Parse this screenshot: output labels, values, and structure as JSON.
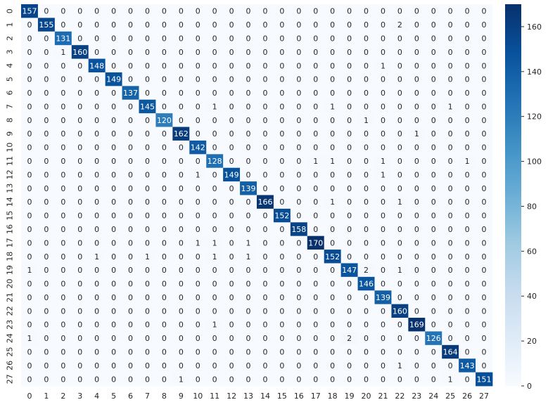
{
  "chart_data": {
    "type": "heatmap",
    "x_ticks": [
      "0",
      "1",
      "2",
      "3",
      "4",
      "5",
      "6",
      "7",
      "8",
      "9",
      "10",
      "11",
      "12",
      "13",
      "14",
      "15",
      "16",
      "17",
      "18",
      "19",
      "20",
      "21",
      "22",
      "23",
      "24",
      "25",
      "26",
      "27"
    ],
    "y_ticks": [
      "0",
      "1",
      "2",
      "3",
      "4",
      "5",
      "6",
      "7",
      "8",
      "9",
      "10",
      "11",
      "12",
      "13",
      "14",
      "15",
      "16",
      "17",
      "18",
      "19",
      "20",
      "21",
      "22",
      "23",
      "24",
      "25",
      "26",
      "27"
    ],
    "colorbar": {
      "min": 0,
      "max": 170,
      "ticks": [
        0,
        20,
        40,
        60,
        80,
        100,
        120,
        140,
        160
      ]
    },
    "colormap": [
      "#f7fbff",
      "#deebf7",
      "#c6dbef",
      "#9ecae1",
      "#6baed6",
      "#4292c6",
      "#2171b5",
      "#08519c",
      "#08306b"
    ],
    "text_light": "#ffffff",
    "text_dark": "#262626",
    "values": [
      [
        157,
        0,
        0,
        0,
        0,
        0,
        0,
        0,
        0,
        0,
        0,
        0,
        0,
        0,
        0,
        0,
        0,
        0,
        0,
        0,
        0,
        0,
        0,
        0,
        0,
        0,
        0,
        0
      ],
      [
        0,
        155,
        0,
        0,
        0,
        0,
        0,
        0,
        0,
        0,
        0,
        0,
        0,
        0,
        0,
        0,
        0,
        0,
        0,
        0,
        0,
        0,
        2,
        0,
        0,
        0,
        0,
        0
      ],
      [
        0,
        0,
        131,
        0,
        0,
        0,
        0,
        0,
        0,
        0,
        0,
        0,
        0,
        0,
        0,
        0,
        0,
        0,
        0,
        0,
        0,
        0,
        0,
        0,
        0,
        0,
        0,
        0
      ],
      [
        0,
        0,
        1,
        160,
        0,
        0,
        0,
        0,
        0,
        0,
        0,
        0,
        0,
        0,
        0,
        0,
        0,
        0,
        0,
        0,
        0,
        0,
        0,
        0,
        0,
        0,
        0,
        0
      ],
      [
        0,
        0,
        0,
        0,
        148,
        0,
        0,
        0,
        0,
        0,
        0,
        0,
        0,
        0,
        0,
        0,
        0,
        0,
        0,
        0,
        0,
        1,
        0,
        0,
        0,
        0,
        0,
        0
      ],
      [
        0,
        0,
        0,
        0,
        0,
        149,
        0,
        0,
        0,
        0,
        0,
        0,
        0,
        0,
        0,
        0,
        0,
        0,
        0,
        0,
        0,
        0,
        0,
        0,
        0,
        0,
        0,
        0
      ],
      [
        0,
        0,
        0,
        0,
        0,
        0,
        137,
        0,
        0,
        0,
        0,
        0,
        0,
        0,
        0,
        0,
        0,
        0,
        0,
        0,
        0,
        0,
        0,
        0,
        0,
        0,
        0,
        0
      ],
      [
        0,
        0,
        0,
        0,
        0,
        0,
        0,
        145,
        0,
        0,
        0,
        1,
        0,
        0,
        0,
        0,
        0,
        0,
        1,
        0,
        0,
        0,
        0,
        0,
        0,
        1,
        0,
        0
      ],
      [
        0,
        0,
        0,
        0,
        0,
        0,
        0,
        0,
        120,
        0,
        0,
        0,
        0,
        0,
        0,
        0,
        0,
        0,
        0,
        0,
        1,
        0,
        0,
        0,
        0,
        0,
        0,
        0
      ],
      [
        0,
        0,
        0,
        0,
        0,
        0,
        0,
        0,
        0,
        162,
        0,
        0,
        0,
        0,
        0,
        0,
        0,
        0,
        0,
        0,
        0,
        0,
        0,
        1,
        0,
        0,
        0,
        0
      ],
      [
        0,
        0,
        0,
        0,
        0,
        0,
        0,
        0,
        0,
        0,
        142,
        0,
        0,
        0,
        0,
        0,
        0,
        0,
        0,
        0,
        0,
        0,
        0,
        0,
        0,
        0,
        0,
        0
      ],
      [
        0,
        0,
        0,
        0,
        0,
        0,
        0,
        0,
        0,
        0,
        0,
        128,
        0,
        0,
        0,
        0,
        0,
        1,
        1,
        0,
        0,
        1,
        0,
        0,
        0,
        0,
        1,
        0
      ],
      [
        0,
        0,
        0,
        0,
        0,
        0,
        0,
        0,
        0,
        0,
        1,
        0,
        149,
        0,
        0,
        0,
        0,
        0,
        0,
        0,
        0,
        1,
        0,
        0,
        0,
        0,
        0,
        0
      ],
      [
        0,
        0,
        0,
        0,
        0,
        0,
        0,
        0,
        0,
        0,
        0,
        0,
        0,
        139,
        0,
        0,
        0,
        0,
        0,
        0,
        0,
        0,
        0,
        0,
        0,
        0,
        0,
        0
      ],
      [
        0,
        0,
        0,
        0,
        0,
        0,
        0,
        0,
        0,
        0,
        0,
        0,
        0,
        0,
        166,
        0,
        0,
        0,
        1,
        0,
        0,
        0,
        1,
        0,
        0,
        0,
        0,
        0
      ],
      [
        0,
        0,
        0,
        0,
        0,
        0,
        0,
        0,
        0,
        0,
        0,
        0,
        0,
        0,
        0,
        152,
        0,
        0,
        0,
        0,
        0,
        0,
        0,
        0,
        0,
        0,
        0,
        0
      ],
      [
        0,
        0,
        0,
        0,
        0,
        0,
        0,
        0,
        0,
        0,
        0,
        0,
        0,
        0,
        0,
        0,
        158,
        0,
        0,
        0,
        0,
        0,
        0,
        0,
        0,
        0,
        0,
        0
      ],
      [
        0,
        0,
        0,
        0,
        0,
        0,
        0,
        0,
        0,
        0,
        1,
        1,
        0,
        1,
        0,
        0,
        0,
        170,
        0,
        0,
        0,
        0,
        0,
        0,
        0,
        0,
        0,
        0
      ],
      [
        0,
        0,
        0,
        0,
        1,
        0,
        0,
        1,
        0,
        0,
        0,
        1,
        0,
        1,
        0,
        0,
        0,
        0,
        152,
        0,
        0,
        0,
        0,
        0,
        0,
        0,
        0,
        0
      ],
      [
        1,
        0,
        0,
        0,
        0,
        0,
        0,
        0,
        0,
        0,
        0,
        0,
        0,
        0,
        0,
        0,
        0,
        0,
        0,
        147,
        2,
        0,
        1,
        0,
        0,
        0,
        0,
        0
      ],
      [
        0,
        0,
        0,
        0,
        0,
        0,
        0,
        0,
        0,
        0,
        0,
        0,
        0,
        0,
        0,
        0,
        0,
        0,
        0,
        0,
        146,
        0,
        0,
        0,
        0,
        0,
        0,
        0
      ],
      [
        0,
        0,
        0,
        0,
        0,
        0,
        0,
        0,
        0,
        0,
        0,
        0,
        0,
        0,
        0,
        0,
        0,
        0,
        0,
        0,
        0,
        139,
        0,
        0,
        0,
        0,
        0,
        0
      ],
      [
        0,
        0,
        0,
        0,
        0,
        0,
        0,
        0,
        0,
        0,
        0,
        0,
        0,
        0,
        0,
        0,
        0,
        0,
        0,
        0,
        0,
        0,
        160,
        0,
        0,
        0,
        0,
        0
      ],
      [
        0,
        0,
        0,
        0,
        0,
        0,
        0,
        0,
        0,
        0,
        0,
        1,
        0,
        0,
        0,
        0,
        0,
        0,
        0,
        0,
        0,
        0,
        0,
        169,
        0,
        0,
        0,
        0
      ],
      [
        1,
        0,
        0,
        0,
        0,
        0,
        0,
        0,
        0,
        0,
        0,
        0,
        0,
        0,
        0,
        0,
        0,
        0,
        0,
        2,
        0,
        0,
        0,
        0,
        126,
        0,
        0,
        0
      ],
      [
        0,
        0,
        0,
        0,
        0,
        0,
        0,
        0,
        0,
        0,
        0,
        0,
        0,
        0,
        0,
        0,
        0,
        0,
        0,
        0,
        0,
        0,
        0,
        0,
        0,
        164,
        0,
        0
      ],
      [
        0,
        0,
        0,
        0,
        0,
        0,
        0,
        0,
        0,
        0,
        0,
        0,
        0,
        0,
        0,
        0,
        0,
        0,
        0,
        0,
        0,
        0,
        1,
        0,
        0,
        0,
        143,
        0
      ],
      [
        0,
        0,
        0,
        0,
        0,
        0,
        0,
        0,
        0,
        1,
        0,
        0,
        0,
        0,
        0,
        0,
        0,
        0,
        0,
        0,
        0,
        0,
        0,
        0,
        0,
        1,
        0,
        151
      ]
    ]
  }
}
